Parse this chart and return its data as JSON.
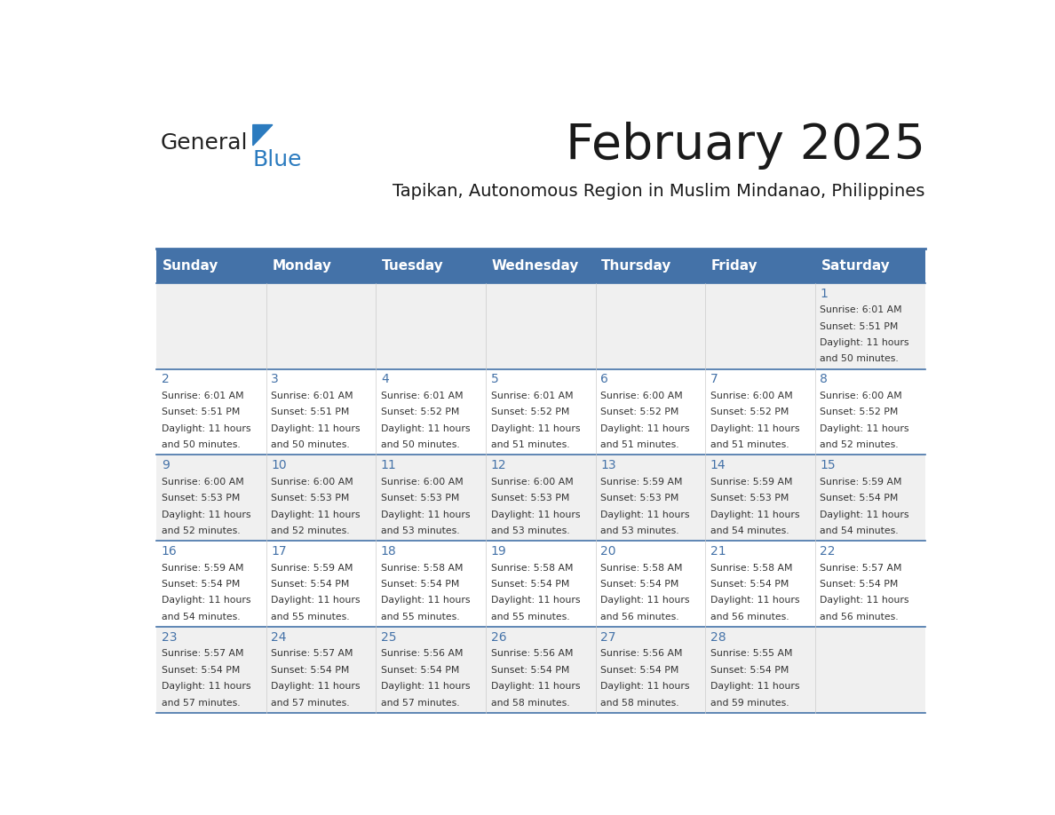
{
  "title": "February 2025",
  "subtitle": "Tapikan, Autonomous Region in Muslim Mindanao, Philippines",
  "days_of_week": [
    "Sunday",
    "Monday",
    "Tuesday",
    "Wednesday",
    "Thursday",
    "Friday",
    "Saturday"
  ],
  "header_bg": "#4472a8",
  "header_text": "#ffffff",
  "row_bg_odd": "#f0f0f0",
  "row_bg_even": "#ffffff",
  "separator_color": "#4472a8",
  "day_number_color": "#4472a8",
  "text_color": "#333333",
  "logo_general_color": "#222222",
  "logo_blue_color": "#2b7bbf",
  "calendar_data": [
    {
      "day": 1,
      "col": 6,
      "row": 0,
      "sunrise": "6:01 AM",
      "sunset": "5:51 PM",
      "daylight": "11 hours and 50 minutes."
    },
    {
      "day": 2,
      "col": 0,
      "row": 1,
      "sunrise": "6:01 AM",
      "sunset": "5:51 PM",
      "daylight": "11 hours and 50 minutes."
    },
    {
      "day": 3,
      "col": 1,
      "row": 1,
      "sunrise": "6:01 AM",
      "sunset": "5:51 PM",
      "daylight": "11 hours and 50 minutes."
    },
    {
      "day": 4,
      "col": 2,
      "row": 1,
      "sunrise": "6:01 AM",
      "sunset": "5:52 PM",
      "daylight": "11 hours and 50 minutes."
    },
    {
      "day": 5,
      "col": 3,
      "row": 1,
      "sunrise": "6:01 AM",
      "sunset": "5:52 PM",
      "daylight": "11 hours and 51 minutes."
    },
    {
      "day": 6,
      "col": 4,
      "row": 1,
      "sunrise": "6:00 AM",
      "sunset": "5:52 PM",
      "daylight": "11 hours and 51 minutes."
    },
    {
      "day": 7,
      "col": 5,
      "row": 1,
      "sunrise": "6:00 AM",
      "sunset": "5:52 PM",
      "daylight": "11 hours and 51 minutes."
    },
    {
      "day": 8,
      "col": 6,
      "row": 1,
      "sunrise": "6:00 AM",
      "sunset": "5:52 PM",
      "daylight": "11 hours and 52 minutes."
    },
    {
      "day": 9,
      "col": 0,
      "row": 2,
      "sunrise": "6:00 AM",
      "sunset": "5:53 PM",
      "daylight": "11 hours and 52 minutes."
    },
    {
      "day": 10,
      "col": 1,
      "row": 2,
      "sunrise": "6:00 AM",
      "sunset": "5:53 PM",
      "daylight": "11 hours and 52 minutes."
    },
    {
      "day": 11,
      "col": 2,
      "row": 2,
      "sunrise": "6:00 AM",
      "sunset": "5:53 PM",
      "daylight": "11 hours and 53 minutes."
    },
    {
      "day": 12,
      "col": 3,
      "row": 2,
      "sunrise": "6:00 AM",
      "sunset": "5:53 PM",
      "daylight": "11 hours and 53 minutes."
    },
    {
      "day": 13,
      "col": 4,
      "row": 2,
      "sunrise": "5:59 AM",
      "sunset": "5:53 PM",
      "daylight": "11 hours and 53 minutes."
    },
    {
      "day": 14,
      "col": 5,
      "row": 2,
      "sunrise": "5:59 AM",
      "sunset": "5:53 PM",
      "daylight": "11 hours and 54 minutes."
    },
    {
      "day": 15,
      "col": 6,
      "row": 2,
      "sunrise": "5:59 AM",
      "sunset": "5:54 PM",
      "daylight": "11 hours and 54 minutes."
    },
    {
      "day": 16,
      "col": 0,
      "row": 3,
      "sunrise": "5:59 AM",
      "sunset": "5:54 PM",
      "daylight": "11 hours and 54 minutes."
    },
    {
      "day": 17,
      "col": 1,
      "row": 3,
      "sunrise": "5:59 AM",
      "sunset": "5:54 PM",
      "daylight": "11 hours and 55 minutes."
    },
    {
      "day": 18,
      "col": 2,
      "row": 3,
      "sunrise": "5:58 AM",
      "sunset": "5:54 PM",
      "daylight": "11 hours and 55 minutes."
    },
    {
      "day": 19,
      "col": 3,
      "row": 3,
      "sunrise": "5:58 AM",
      "sunset": "5:54 PM",
      "daylight": "11 hours and 55 minutes."
    },
    {
      "day": 20,
      "col": 4,
      "row": 3,
      "sunrise": "5:58 AM",
      "sunset": "5:54 PM",
      "daylight": "11 hours and 56 minutes."
    },
    {
      "day": 21,
      "col": 5,
      "row": 3,
      "sunrise": "5:58 AM",
      "sunset": "5:54 PM",
      "daylight": "11 hours and 56 minutes."
    },
    {
      "day": 22,
      "col": 6,
      "row": 3,
      "sunrise": "5:57 AM",
      "sunset": "5:54 PM",
      "daylight": "11 hours and 56 minutes."
    },
    {
      "day": 23,
      "col": 0,
      "row": 4,
      "sunrise": "5:57 AM",
      "sunset": "5:54 PM",
      "daylight": "11 hours and 57 minutes."
    },
    {
      "day": 24,
      "col": 1,
      "row": 4,
      "sunrise": "5:57 AM",
      "sunset": "5:54 PM",
      "daylight": "11 hours and 57 minutes."
    },
    {
      "day": 25,
      "col": 2,
      "row": 4,
      "sunrise": "5:56 AM",
      "sunset": "5:54 PM",
      "daylight": "11 hours and 57 minutes."
    },
    {
      "day": 26,
      "col": 3,
      "row": 4,
      "sunrise": "5:56 AM",
      "sunset": "5:54 PM",
      "daylight": "11 hours and 58 minutes."
    },
    {
      "day": 27,
      "col": 4,
      "row": 4,
      "sunrise": "5:56 AM",
      "sunset": "5:54 PM",
      "daylight": "11 hours and 58 minutes."
    },
    {
      "day": 28,
      "col": 5,
      "row": 4,
      "sunrise": "5:55 AM",
      "sunset": "5:54 PM",
      "daylight": "11 hours and 59 minutes."
    }
  ]
}
